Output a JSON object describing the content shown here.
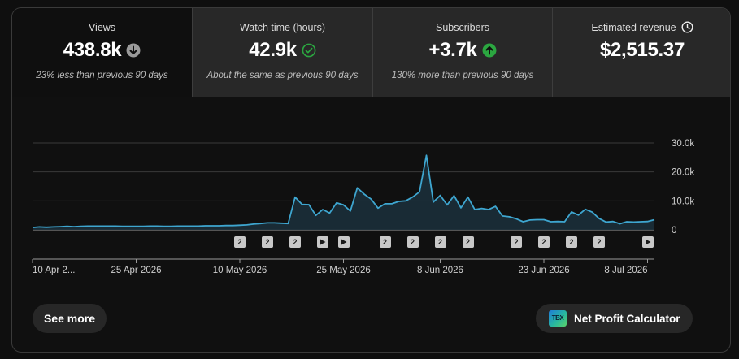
{
  "metrics": [
    {
      "label": "Views",
      "value": "438.8k",
      "comparison": "23% less than previous 90 days",
      "icon": "arrow-down-circle-icon",
      "active": true
    },
    {
      "label": "Watch time (hours)",
      "value": "42.9k",
      "comparison": "About the same as previous 90 days",
      "icon": "check-circle-icon"
    },
    {
      "label": "Subscribers",
      "value": "+3.7k",
      "comparison": "130% more than previous 90 days",
      "icon": "arrow-up-circle-icon"
    },
    {
      "label": "Estimated revenue",
      "value": "$2,515.37",
      "comparison": "",
      "icon": "clock-icon"
    }
  ],
  "chart_data": {
    "type": "area",
    "ylim": [
      0,
      30000
    ],
    "y_ticks": [
      "30.0k",
      "20.0k",
      "10.0k",
      "0"
    ],
    "y_tick_values": [
      30000,
      20000,
      10000,
      0
    ],
    "x_tick_labels": [
      "10 Apr 2...",
      "25 Apr 2026",
      "10 May 2026",
      "25 May 2026",
      "8 Jun 2026",
      "23 Jun 2026",
      "8 Jul 2026"
    ],
    "x_tick_index": [
      0,
      15,
      30,
      45,
      59,
      74,
      89
    ],
    "series": [
      {
        "values": [
          800,
          1000,
          900,
          1000,
          1100,
          1200,
          1100,
          1200,
          1300,
          1300,
          1300,
          1300,
          1300,
          1200,
          1200,
          1200,
          1200,
          1300,
          1300,
          1200,
          1200,
          1300,
          1300,
          1300,
          1300,
          1400,
          1400,
          1400,
          1500,
          1500,
          1600,
          1700,
          2000,
          2200,
          2400,
          2400,
          2300,
          2200,
          11300,
          8800,
          8700,
          5000,
          7000,
          5800,
          9300,
          8600,
          6500,
          14500,
          12300,
          10600,
          7500,
          9000,
          9000,
          9800,
          10000,
          11300,
          13100,
          25700,
          9600,
          11900,
          8600,
          11800,
          7600,
          11300,
          7000,
          7400,
          7000,
          8100,
          4800,
          4500,
          3800,
          2800,
          3400,
          3500,
          3500,
          2800,
          2900,
          2800,
          6200,
          5100,
          7100,
          6100,
          3900,
          2700,
          2900,
          2100,
          2800,
          2700,
          2800,
          2900,
          3500
        ]
      }
    ],
    "line_color": "#3ea6d0",
    "grid": true,
    "annotation_markers": [
      {
        "index": 30,
        "kind": "count",
        "label": "2"
      },
      {
        "index": 34,
        "kind": "count",
        "label": "2"
      },
      {
        "index": 38,
        "kind": "count",
        "label": "2"
      },
      {
        "index": 42,
        "kind": "video"
      },
      {
        "index": 45,
        "kind": "video"
      },
      {
        "index": 51,
        "kind": "count",
        "label": "2"
      },
      {
        "index": 55,
        "kind": "count",
        "label": "2"
      },
      {
        "index": 59,
        "kind": "count",
        "label": "2"
      },
      {
        "index": 63,
        "kind": "count",
        "label": "2"
      },
      {
        "index": 70,
        "kind": "count",
        "label": "2"
      },
      {
        "index": 74,
        "kind": "count",
        "label": "2"
      },
      {
        "index": 78,
        "kind": "count",
        "label": "2"
      },
      {
        "index": 82,
        "kind": "count",
        "label": "2"
      },
      {
        "index": 89,
        "kind": "video"
      }
    ]
  },
  "buttons": {
    "see_more": "See more",
    "net_profit": "Net Profit Calculator",
    "net_profit_logo": "TBX"
  }
}
